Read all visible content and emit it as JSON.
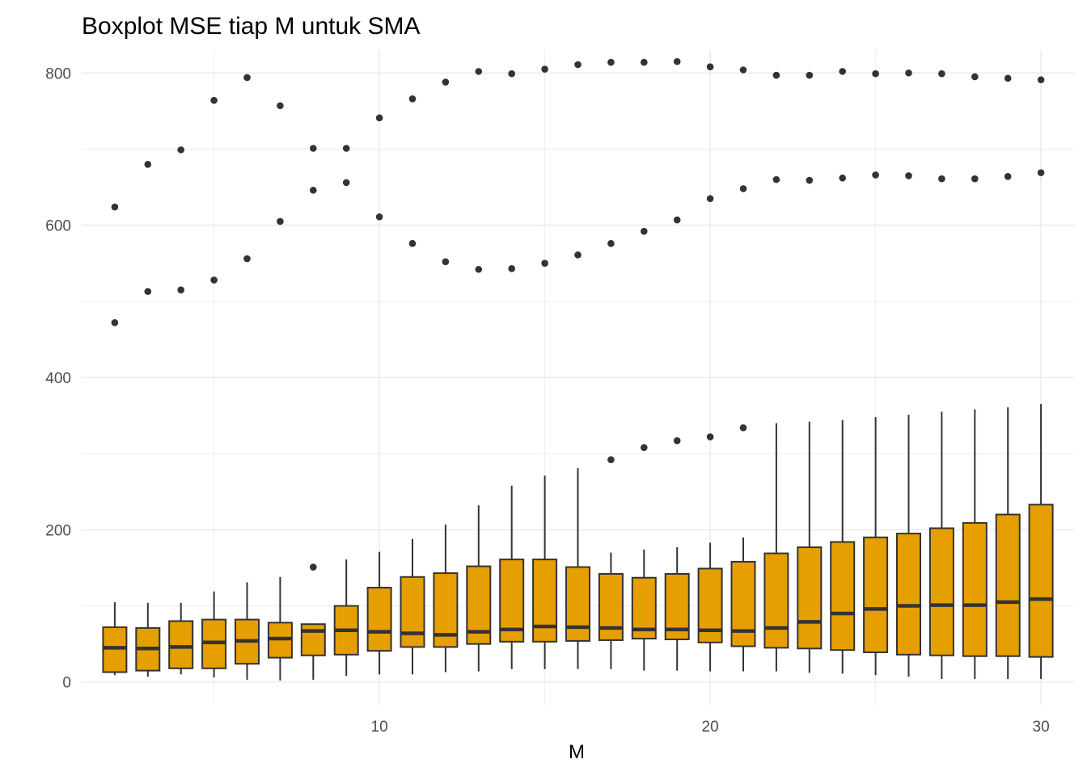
{
  "chart_data": {
    "type": "boxplot",
    "title": "Boxplot MSE tiap M untuk SMA",
    "xlabel": "M",
    "ylabel": "",
    "xlim": [
      1,
      31
    ],
    "ylim": [
      -30,
      830
    ],
    "x_ticks": [
      10,
      20,
      30
    ],
    "x_minor_ticks": [
      5,
      15,
      25
    ],
    "y_ticks": [
      0,
      200,
      400,
      600,
      800
    ],
    "y_minor_ticks": [
      100,
      300,
      500,
      700
    ],
    "grid": true,
    "legend": "none",
    "colors": {
      "box_fill": "#E69F00",
      "outline": "#333333",
      "grid": "#ebebeb",
      "background": "#ffffff"
    },
    "boxes": [
      {
        "x": 2,
        "lower": 9,
        "q1": 13,
        "median": 45,
        "q3": 72,
        "upper": 105,
        "outliers": [
          472,
          624
        ]
      },
      {
        "x": 3,
        "lower": 7,
        "q1": 15,
        "median": 44,
        "q3": 71,
        "upper": 104,
        "outliers": [
          513,
          680
        ]
      },
      {
        "x": 4,
        "lower": 10,
        "q1": 18,
        "median": 46,
        "q3": 80,
        "upper": 104,
        "outliers": [
          515,
          699
        ]
      },
      {
        "x": 5,
        "lower": 6,
        "q1": 18,
        "median": 52,
        "q3": 82,
        "upper": 119,
        "outliers": [
          528,
          764
        ]
      },
      {
        "x": 6,
        "lower": 3,
        "q1": 24,
        "median": 54,
        "q3": 82,
        "upper": 131,
        "outliers": [
          556,
          794
        ]
      },
      {
        "x": 7,
        "lower": 2,
        "q1": 32,
        "median": 57,
        "q3": 78,
        "upper": 138,
        "outliers": [
          605,
          757
        ]
      },
      {
        "x": 8,
        "lower": 3,
        "q1": 35,
        "median": 67,
        "q3": 76,
        "upper": 77,
        "outliers": [
          151,
          646,
          701
        ]
      },
      {
        "x": 9,
        "lower": 8,
        "q1": 36,
        "median": 68,
        "q3": 100,
        "upper": 161,
        "outliers": [
          656,
          701
        ]
      },
      {
        "x": 10,
        "lower": 10,
        "q1": 41,
        "median": 66,
        "q3": 124,
        "upper": 171,
        "outliers": [
          611,
          741
        ]
      },
      {
        "x": 11,
        "lower": 10,
        "q1": 46,
        "median": 64,
        "q3": 138,
        "upper": 188,
        "outliers": [
          576,
          766
        ]
      },
      {
        "x": 12,
        "lower": 13,
        "q1": 46,
        "median": 62,
        "q3": 143,
        "upper": 207,
        "outliers": [
          552,
          788
        ]
      },
      {
        "x": 13,
        "lower": 14,
        "q1": 50,
        "median": 66,
        "q3": 152,
        "upper": 232,
        "outliers": [
          542,
          802
        ]
      },
      {
        "x": 14,
        "lower": 17,
        "q1": 53,
        "median": 69,
        "q3": 161,
        "upper": 258,
        "outliers": [
          543,
          799
        ]
      },
      {
        "x": 15,
        "lower": 17,
        "q1": 53,
        "median": 73,
        "q3": 161,
        "upper": 271,
        "outliers": [
          550,
          805
        ]
      },
      {
        "x": 16,
        "lower": 17,
        "q1": 54,
        "median": 72,
        "q3": 151,
        "upper": 281,
        "outliers": [
          561,
          811
        ]
      },
      {
        "x": 17,
        "lower": 17,
        "q1": 55,
        "median": 71,
        "q3": 142,
        "upper": 170,
        "outliers": [
          292,
          576,
          814
        ]
      },
      {
        "x": 18,
        "lower": 15,
        "q1": 57,
        "median": 69,
        "q3": 137,
        "upper": 174,
        "outliers": [
          308,
          592,
          814
        ]
      },
      {
        "x": 19,
        "lower": 15,
        "q1": 56,
        "median": 69,
        "q3": 142,
        "upper": 177,
        "outliers": [
          317,
          607,
          815
        ]
      },
      {
        "x": 20,
        "lower": 14,
        "q1": 52,
        "median": 68,
        "q3": 149,
        "upper": 183,
        "outliers": [
          322,
          635,
          808
        ]
      },
      {
        "x": 21,
        "lower": 14,
        "q1": 47,
        "median": 67,
        "q3": 158,
        "upper": 190,
        "outliers": [
          334,
          648,
          804
        ]
      },
      {
        "x": 22,
        "lower": 14,
        "q1": 45,
        "median": 71,
        "q3": 169,
        "upper": 340,
        "outliers": [
          660,
          797
        ]
      },
      {
        "x": 23,
        "lower": 12,
        "q1": 44,
        "median": 79,
        "q3": 177,
        "upper": 342,
        "outliers": [
          659,
          797
        ]
      },
      {
        "x": 24,
        "lower": 11,
        "q1": 42,
        "median": 90,
        "q3": 184,
        "upper": 344,
        "outliers": [
          662,
          802
        ]
      },
      {
        "x": 25,
        "lower": 9,
        "q1": 39,
        "median": 96,
        "q3": 190,
        "upper": 348,
        "outliers": [
          666,
          799
        ]
      },
      {
        "x": 26,
        "lower": 7,
        "q1": 36,
        "median": 100,
        "q3": 195,
        "upper": 351,
        "outliers": [
          665,
          800
        ]
      },
      {
        "x": 27,
        "lower": 4,
        "q1": 35,
        "median": 101,
        "q3": 202,
        "upper": 355,
        "outliers": [
          661,
          799
        ]
      },
      {
        "x": 28,
        "lower": 4,
        "q1": 34,
        "median": 101,
        "q3": 209,
        "upper": 358,
        "outliers": [
          661,
          795
        ]
      },
      {
        "x": 29,
        "lower": 4,
        "q1": 34,
        "median": 105,
        "q3": 220,
        "upper": 361,
        "outliers": [
          664,
          793
        ]
      },
      {
        "x": 30,
        "lower": 4,
        "q1": 33,
        "median": 109,
        "q3": 233,
        "upper": 365,
        "outliers": [
          669,
          791
        ]
      }
    ]
  }
}
